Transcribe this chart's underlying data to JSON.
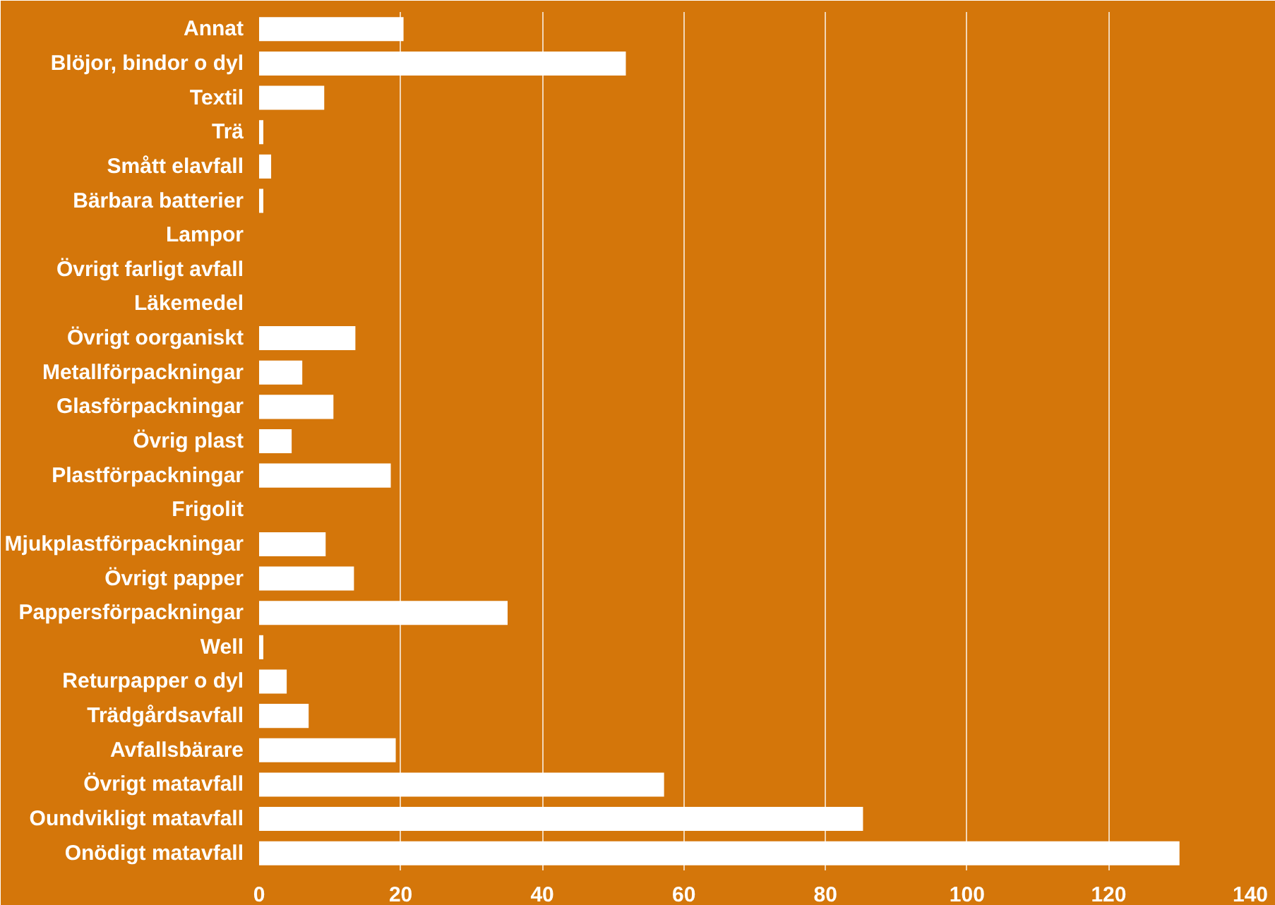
{
  "chart_data": {
    "type": "bar",
    "orientation": "horizontal",
    "categories": [
      "Annat",
      "Blöjor, bindor o dyl",
      "Textil",
      "Trä",
      "Smått elavfall",
      "Bärbara batterier",
      "Lampor",
      "Övrigt farligt avfall",
      "Läkemedel",
      "Övrigt oorganiskt",
      "Metallförpackningar",
      "Glasförpackningar",
      "Övrig plast",
      "Plastförpackningar",
      "Frigolit",
      "Mjukplastförpackningar",
      "Övrigt papper",
      "Pappersförpackningar",
      "Well",
      "Returpapper o dyl",
      "Trädgårdsavfall",
      "Avfallsbärare",
      "Övrigt matavfall",
      "Oundvikligt matavfall",
      "Onödigt matavfall"
    ],
    "values": [
      20.4,
      51.8,
      9.2,
      0.6,
      1.7,
      0.6,
      0,
      0,
      0,
      13.6,
      6.1,
      10.5,
      4.6,
      18.6,
      0,
      9.4,
      13.4,
      35.1,
      0.6,
      3.9,
      7.0,
      19.3,
      57.2,
      85.3,
      130.0
    ],
    "color": "#ffffff",
    "xlim": [
      0,
      140
    ],
    "xticks": [
      0,
      20,
      40,
      60,
      80,
      100,
      120,
      140
    ],
    "grid": "x"
  }
}
